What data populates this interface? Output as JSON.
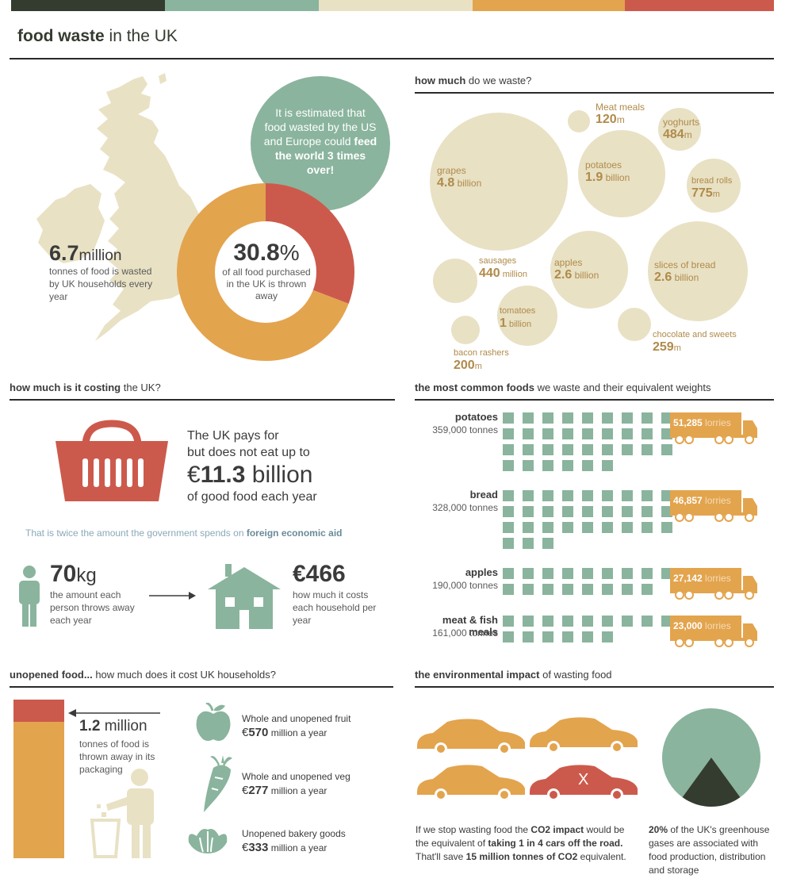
{
  "colors": {
    "dark": "#343b2f",
    "green": "#8ab49d",
    "beige": "#e8e1c4",
    "orange": "#e3a44e",
    "red": "#cc5a4c"
  },
  "header": {
    "title_bold": "food waste",
    "title_rest": " in the UK"
  },
  "overview": {
    "callout": {
      "line1": "It is estimated that",
      "line2": "food wasted by the US",
      "line3a": "and Europe could ",
      "line3b": "feed",
      "line4": "the world 3 times",
      "line5": "over!"
    },
    "donut": {
      "value_label": "30.8",
      "unit": "%",
      "desc1": "of all food purchased",
      "desc2": "in the UK is thrown",
      "desc3": "away",
      "wasted_fraction": 0.308
    },
    "tonnes": {
      "value": "6.7",
      "unit": "million",
      "desc1": "tonnes of food is wasted",
      "desc2": "by UK households every",
      "desc3": "year"
    },
    "map_icon": "uk-map-icon"
  },
  "how_much": {
    "title_bold": "how much",
    "title_rest": " do we waste?",
    "bubbles": [
      {
        "name": "Meat meals",
        "value": "120",
        "unit": "m"
      },
      {
        "name": "yoghurts",
        "value": "484",
        "unit": "m"
      },
      {
        "name": "grapes",
        "value": "4.8",
        "unit": " billion"
      },
      {
        "name": "potatoes",
        "value": "1.9",
        "unit": " billion"
      },
      {
        "name": "bread rolls",
        "value": "775",
        "unit": "m"
      },
      {
        "name": "sausages",
        "value": "440",
        "unit": " million"
      },
      {
        "name": "apples",
        "value": "2.6",
        "unit": " billion"
      },
      {
        "name": "slices of bread",
        "value": "2.6",
        "unit": " billion"
      },
      {
        "name": "tomatoes",
        "value": "1",
        "unit": " billion"
      },
      {
        "name": "chocolate and sweets",
        "value": "259",
        "unit": "m"
      },
      {
        "name": "bacon rashers",
        "value": "200",
        "unit": "m"
      }
    ]
  },
  "costing": {
    "title_bold": "how much is it costing",
    "title_rest": " the UK?",
    "basket_icon": "shopping-basket-icon",
    "line1": "The UK pays for",
    "line2": "but does not eat up to",
    "amount_currency": "€",
    "amount_value": "11.3",
    "amount_unit": " billion",
    "line3": "of good food each year",
    "aid_text": "That is twice the amount the government spends on ",
    "aid_bold": "foreign economic aid",
    "person": {
      "value": "70",
      "unit": "kg",
      "desc1": "the amount each",
      "desc2": "person throws away",
      "desc3": "each year"
    },
    "house": {
      "value": "€466",
      "desc1": "how much it costs",
      "desc2": "each household per",
      "desc3": "year"
    }
  },
  "common": {
    "title_bold": "the most common foods",
    "title_rest": " we waste and their equivalent weights",
    "rows": [
      {
        "name": "potatoes",
        "tonnes": "359,000 tonnes",
        "squares": 33,
        "lorries_value": "51,285",
        "lorries_word": "lorries"
      },
      {
        "name": "bread",
        "tonnes": "328,000 tonnes",
        "squares": 30,
        "lorries_value": "46,857",
        "lorries_word": "lorries"
      },
      {
        "name": "apples",
        "tonnes": "190,000 tonnes",
        "squares": 17,
        "lorries_value": "27,142",
        "lorries_word": "lorries"
      },
      {
        "name": "meat & fish meals",
        "tonnes": "161,000 tonnes",
        "squares": 15,
        "lorries_value": "23,000",
        "lorries_word": "lorries"
      }
    ]
  },
  "unopened": {
    "title_bold": "unopened food...",
    "title_rest": " how much does it cost UK households?",
    "bar_fraction": 0.14,
    "tonnes_value": "1.2",
    "tonnes_unit": " million",
    "desc1": "tonnes of food is",
    "desc2": "thrown away in its",
    "desc3": "packaging",
    "items": [
      {
        "icon": "apple-icon",
        "label": "Whole and unopened fruit",
        "currency": "€",
        "value": "570",
        "unit": " million a year"
      },
      {
        "icon": "carrot-icon",
        "label": "Whole and unopened veg",
        "currency": "€",
        "value": "277",
        "unit": " million a year"
      },
      {
        "icon": "croissant-icon",
        "label": "Unopened bakery goods",
        "currency": "€",
        "value": "333",
        "unit": " million a year"
      }
    ]
  },
  "environment": {
    "title_bold": "the environmental impact",
    "title_rest": " of wasting food",
    "cars_x": "X",
    "co2": {
      "t1": "If we stop wasting food the ",
      "b1": "CO2 impact",
      "t2": " would be",
      "t3": "the equivalent of ",
      "b2": "taking 1 in 4 cars off the road.",
      "t4": "That'll save ",
      "b3": "15 million tonnes of CO2",
      "t5": " equivalent."
    },
    "ghg": {
      "bold": "20%",
      "t1": " of the UK's greenhouse",
      "t2": "gases are associated with",
      "t3": "food production, distribution",
      "t4": "and storage",
      "fraction": 0.2
    }
  }
}
